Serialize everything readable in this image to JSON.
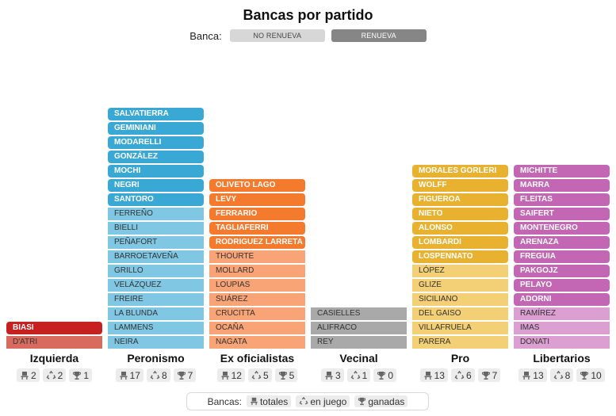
{
  "title": "Bancas por partido",
  "legend": {
    "label": "Banca:",
    "no_renueva": "NO RENUEVA",
    "renueva": "RENUEVA",
    "colors": {
      "no_renueva": "#d7d7d7",
      "renueva": "#868686"
    }
  },
  "chart_data": {
    "type": "parliament-columns",
    "title": "Bancas por partido",
    "parties": [
      {
        "name": "Izquierda",
        "color_renueva": "#c62020",
        "color_no_renueva": "#d96a5e",
        "renueva": [
          "BIASI"
        ],
        "no_renueva": [
          "D'ATRI"
        ],
        "totales": 2,
        "en_juego": 2,
        "ganadas": 1
      },
      {
        "name": "Peronismo",
        "color_renueva": "#3aa8d5",
        "color_no_renueva": "#80c7e4",
        "renueva": [
          "SALVATIERRA",
          "GEMINIANI",
          "MODARELLI",
          "GONZÁLEZ",
          "MOCHI",
          "NEGRI",
          "SANTORO"
        ],
        "no_renueva": [
          "FERREÑO",
          "BIELLI",
          "PEÑAFORT",
          "BARROETAVEÑA",
          "GRILLO",
          "VELÁZQUEZ",
          "FREIRE",
          "LA BLUNDA",
          "LAMMENS",
          "NEIRA"
        ],
        "totales": 17,
        "en_juego": 8,
        "ganadas": 7
      },
      {
        "name": "Ex oficialistas",
        "color_renueva": "#f47a2e",
        "color_no_renueva": "#f9a477",
        "renueva": [
          "OLIVETO LAGO",
          "LEVY",
          "FERRARIO",
          "TAGLIAFERRI",
          "RODRIGUEZ LARRETA"
        ],
        "no_renueva": [
          "THOURTE",
          "MOLLARD",
          "LOUPIAS",
          "SUÁREZ",
          "CRUCITTA",
          "OCAÑA",
          "NAGATA"
        ],
        "totales": 12,
        "en_juego": 5,
        "ganadas": 5
      },
      {
        "name": "Vecinal",
        "color_renueva": "#868686",
        "color_no_renueva": "#a9a9a9",
        "renueva": [],
        "no_renueva": [
          "CASIELLES",
          "ALIFRACO",
          "REY"
        ],
        "totales": 3,
        "en_juego": 1,
        "ganadas": 0
      },
      {
        "name": "Pro",
        "color_renueva": "#e9b130",
        "color_no_renueva": "#f3cf76",
        "renueva": [
          "MORALES GORLERI",
          "WOLFF",
          "FIGUEROA",
          "NIETO",
          "ALONSO",
          "LOMBARDI",
          "LOSPENNATO"
        ],
        "no_renueva": [
          "LÓPEZ",
          "GLIZE",
          "SICILIANO",
          "DEL GAISO",
          "VILLAFRUELA",
          "PARERA"
        ],
        "totales": 13,
        "en_juego": 6,
        "ganadas": 7
      },
      {
        "name": "Libertarios",
        "color_renueva": "#c367b5",
        "color_no_renueva": "#dc9fd1",
        "renueva": [
          "MICHITTE",
          "MARRA",
          "FLEITAS",
          "SAIFERT",
          "MONTENEGRO",
          "ARENAZA",
          "FREGUIA",
          "PAKGOJZ",
          "PELAYO",
          "ADORNI"
        ],
        "no_renueva": [
          "RAMÍREZ",
          "IMAS",
          "DONATI"
        ],
        "totales": 13,
        "en_juego": 8,
        "ganadas": 10
      }
    ]
  },
  "bottom_legend": {
    "label": "Bancas:",
    "totales": "totales",
    "en_juego": "en juego",
    "ganadas": "ganadas"
  }
}
